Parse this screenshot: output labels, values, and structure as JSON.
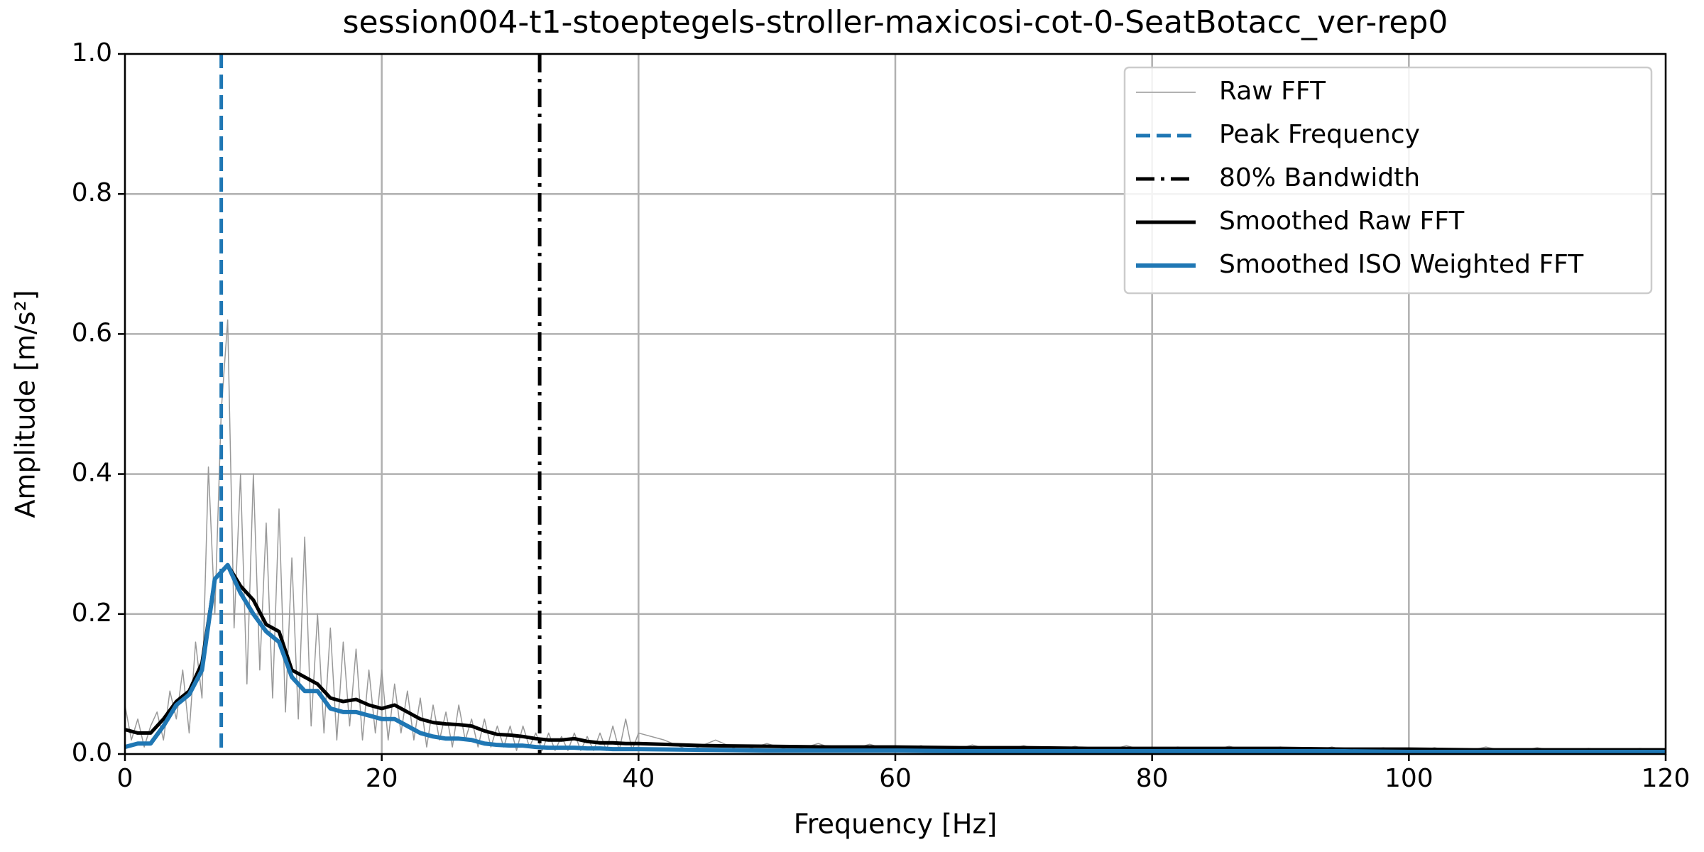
{
  "chart_data": {
    "type": "line",
    "title": "session004-t1-stoeptegels-stroller-maxicosi-cot-0-SeatBotacc_ver-rep0",
    "xlabel": "Frequency [Hz]",
    "ylabel": "Amplitude [m/s²]",
    "xlim": [
      0,
      120
    ],
    "ylim": [
      0,
      1
    ],
    "xticks": [
      0,
      20,
      40,
      60,
      80,
      100,
      120
    ],
    "yticks": [
      {
        "value": 0,
        "label": "0.0"
      },
      0.2,
      0.4,
      0.6,
      0.8,
      {
        "value": 1,
        "label": "1.0"
      }
    ],
    "grid": true,
    "legend": "upper right",
    "series": [
      {
        "name": "Raw FFT",
        "color": "#999999",
        "style": "solid",
        "linewidth": 1.5,
        "x": [
          0,
          0.5,
          1,
          1.5,
          2,
          2.5,
          3,
          3.5,
          4,
          4.5,
          5,
          5.5,
          6,
          6.5,
          7,
          7.5,
          8,
          8.5,
          9,
          9.5,
          10,
          10.5,
          11,
          11.5,
          12,
          12.5,
          13,
          13.5,
          14,
          14.5,
          15,
          15.5,
          16,
          16.5,
          17,
          17.5,
          18,
          18.5,
          19,
          19.5,
          20,
          20.5,
          21,
          21.5,
          22,
          22.5,
          23,
          23.5,
          24,
          24.5,
          25,
          25.5,
          26,
          26.5,
          27,
          27.5,
          28,
          28.5,
          29,
          29.5,
          30,
          30.5,
          31,
          31.5,
          32,
          32.5,
          33,
          33.5,
          34,
          34.5,
          35,
          35.5,
          36,
          36.5,
          37,
          37.5,
          38,
          38.5,
          39,
          39.5,
          40,
          42,
          44,
          46,
          48,
          50,
          52,
          54,
          56,
          58,
          60,
          62,
          64,
          66,
          68,
          70,
          72,
          74,
          76,
          78,
          80,
          82,
          84,
          86,
          88,
          90,
          92,
          94,
          96,
          98,
          100,
          102,
          104,
          106,
          108,
          110,
          112,
          114,
          116,
          118,
          120
        ],
        "values": [
          0.07,
          0.02,
          0.05,
          0.01,
          0.04,
          0.06,
          0.02,
          0.09,
          0.05,
          0.12,
          0.03,
          0.16,
          0.08,
          0.41,
          0.2,
          0.49,
          0.62,
          0.18,
          0.4,
          0.1,
          0.4,
          0.12,
          0.33,
          0.08,
          0.35,
          0.06,
          0.28,
          0.05,
          0.31,
          0.04,
          0.2,
          0.03,
          0.18,
          0.02,
          0.16,
          0.04,
          0.15,
          0.02,
          0.12,
          0.03,
          0.12,
          0.02,
          0.1,
          0.03,
          0.09,
          0.02,
          0.08,
          0.01,
          0.07,
          0.02,
          0.06,
          0.01,
          0.07,
          0.02,
          0.05,
          0.01,
          0.05,
          0.01,
          0.04,
          0.01,
          0.04,
          0.005,
          0.04,
          0.01,
          0.03,
          0.005,
          0.03,
          0.005,
          0.025,
          0.005,
          0.03,
          0.005,
          0.025,
          0.005,
          0.03,
          0.005,
          0.04,
          0.005,
          0.05,
          0.005,
          0.03,
          0.02,
          0.005,
          0.02,
          0.004,
          0.015,
          0.004,
          0.015,
          0.003,
          0.014,
          0.003,
          0.012,
          0.003,
          0.013,
          0.003,
          0.012,
          0.002,
          0.011,
          0.002,
          0.012,
          0.002,
          0.01,
          0.002,
          0.011,
          0.002,
          0.01,
          0.002,
          0.01,
          0.002,
          0.009,
          0.002,
          0.009,
          0.002,
          0.01,
          0.002,
          0.009,
          0.002,
          0.008,
          0.002,
          0.008,
          0.002
        ]
      },
      {
        "name": "Peak Frequency",
        "color": "#1f77b4",
        "style": "dashed",
        "linewidth": 5,
        "x": [
          7.5
        ]
      },
      {
        "name": "80% Bandwidth",
        "color": "#000000",
        "style": "dashdot",
        "linewidth": 5,
        "x": [
          32.3
        ]
      },
      {
        "name": "Smoothed Raw FFT",
        "color": "#000000",
        "style": "solid",
        "linewidth": 5,
        "x": [
          0,
          1,
          2,
          3,
          4,
          5,
          6,
          7,
          8,
          9,
          10,
          11,
          12,
          13,
          14,
          15,
          16,
          17,
          18,
          19,
          20,
          21,
          22,
          23,
          24,
          25,
          26,
          27,
          28,
          29,
          30,
          31,
          32,
          33,
          34,
          35,
          36,
          37,
          38,
          39,
          40,
          45,
          50,
          55,
          60,
          65,
          70,
          75,
          80,
          85,
          90,
          95,
          100,
          105,
          110,
          115,
          120
        ],
        "values": [
          0.035,
          0.03,
          0.03,
          0.05,
          0.075,
          0.09,
          0.13,
          0.25,
          0.27,
          0.24,
          0.22,
          0.185,
          0.175,
          0.12,
          0.11,
          0.1,
          0.08,
          0.075,
          0.078,
          0.07,
          0.065,
          0.07,
          0.06,
          0.05,
          0.045,
          0.043,
          0.042,
          0.04,
          0.033,
          0.028,
          0.027,
          0.025,
          0.022,
          0.02,
          0.02,
          0.022,
          0.018,
          0.016,
          0.016,
          0.015,
          0.015,
          0.012,
          0.011,
          0.01,
          0.01,
          0.009,
          0.009,
          0.008,
          0.008,
          0.008,
          0.008,
          0.007,
          0.007,
          0.006,
          0.006,
          0.006,
          0.006
        ]
      },
      {
        "name": "Smoothed ISO Weighted FFT",
        "color": "#1f77b4",
        "style": "solid",
        "linewidth": 6,
        "x": [
          0,
          1,
          2,
          3,
          4,
          5,
          6,
          7,
          8,
          9,
          10,
          11,
          12,
          13,
          14,
          15,
          16,
          17,
          18,
          19,
          20,
          21,
          22,
          23,
          24,
          25,
          26,
          27,
          28,
          29,
          30,
          31,
          32,
          33,
          34,
          35,
          36,
          37,
          38,
          39,
          40,
          45,
          50,
          55,
          60,
          65,
          70,
          75,
          80,
          85,
          90,
          95,
          100,
          105,
          110,
          115,
          120
        ],
        "values": [
          0.01,
          0.015,
          0.015,
          0.04,
          0.07,
          0.085,
          0.12,
          0.25,
          0.27,
          0.23,
          0.2,
          0.175,
          0.16,
          0.11,
          0.09,
          0.09,
          0.065,
          0.06,
          0.06,
          0.055,
          0.05,
          0.05,
          0.04,
          0.03,
          0.025,
          0.022,
          0.022,
          0.02,
          0.015,
          0.013,
          0.012,
          0.012,
          0.01,
          0.009,
          0.009,
          0.009,
          0.008,
          0.008,
          0.007,
          0.007,
          0.007,
          0.006,
          0.005,
          0.005,
          0.005,
          0.004,
          0.004,
          0.004,
          0.004,
          0.004,
          0.004,
          0.004,
          0.003,
          0.003,
          0.003,
          0.003,
          0.003
        ]
      }
    ]
  }
}
